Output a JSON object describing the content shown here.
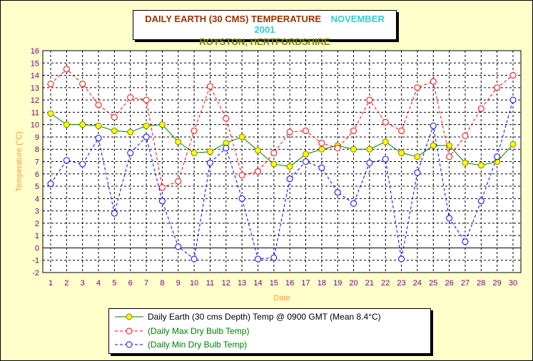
{
  "chart_data": {
    "type": "line",
    "title": "DAILY EARTH (30 CMS) TEMPERATURE",
    "title_month": "NOVEMBER 2001",
    "subtitle": "ROYSTON, HERTFORDSHIRE",
    "xlabel": "Date",
    "ylabel": "Temperature (°C)",
    "ylim": [
      -2,
      16
    ],
    "xlim": [
      1,
      30
    ],
    "yticks": [
      -2,
      -1,
      0,
      1,
      2,
      3,
      4,
      5,
      6,
      7,
      8,
      9,
      10,
      11,
      12,
      13,
      14,
      15,
      16
    ],
    "x": [
      1,
      2,
      3,
      4,
      5,
      6,
      7,
      8,
      9,
      10,
      11,
      12,
      13,
      14,
      15,
      16,
      17,
      18,
      19,
      20,
      21,
      22,
      23,
      24,
      25,
      26,
      27,
      28,
      29,
      30
    ],
    "grid": true,
    "legend_position": "bottom",
    "series": [
      {
        "name": "Daily Earth (30 cms Depth) Temp @ 0900 GMT (Mean 8.4°C)",
        "color": "#008000",
        "marker_fill": "#ffff00",
        "marker_stroke": "#808000",
        "line_style": "solid",
        "values": [
          10.9,
          10.0,
          10.0,
          9.9,
          9.5,
          9.4,
          9.9,
          10.0,
          8.6,
          7.7,
          7.8,
          8.5,
          9.0,
          7.9,
          6.8,
          6.6,
          7.6,
          8.0,
          8.3,
          8.0,
          8.0,
          8.6,
          7.7,
          7.4,
          8.3,
          8.3,
          6.9,
          6.7,
          7.0,
          8.4
        ]
      },
      {
        "name": "(Daily Max Dry Bulb Temp)",
        "color": "#ff0000",
        "marker_fill": "#ffffff",
        "marker_stroke": "#ff0000",
        "line_style": "dashed",
        "values": [
          13.3,
          14.5,
          13.3,
          11.6,
          10.6,
          12.2,
          12.0,
          4.9,
          5.4,
          9.5,
          13.1,
          10.5,
          5.9,
          6.2,
          7.7,
          9.4,
          9.5,
          8.5,
          8.1,
          9.5,
          12.0,
          10.2,
          9.5,
          13.0,
          13.5,
          7.4,
          9.1,
          11.3,
          13.0,
          14.0
        ]
      },
      {
        "name": "(Daily Min Dry Bulb Temp)",
        "color": "#0000ff",
        "marker_fill": "#ffffff",
        "marker_stroke": "#0000ff",
        "line_style": "dashed",
        "values": [
          5.2,
          7.1,
          6.8,
          8.9,
          2.8,
          7.7,
          9.0,
          3.8,
          0.1,
          -0.9,
          6.9,
          8.1,
          4.0,
          -0.9,
          -0.8,
          5.6,
          7.0,
          6.5,
          4.5,
          3.6,
          6.9,
          7.2,
          -0.9,
          6.1,
          9.9,
          2.4,
          0.5,
          3.8,
          7.4,
          12.0
        ]
      }
    ]
  }
}
